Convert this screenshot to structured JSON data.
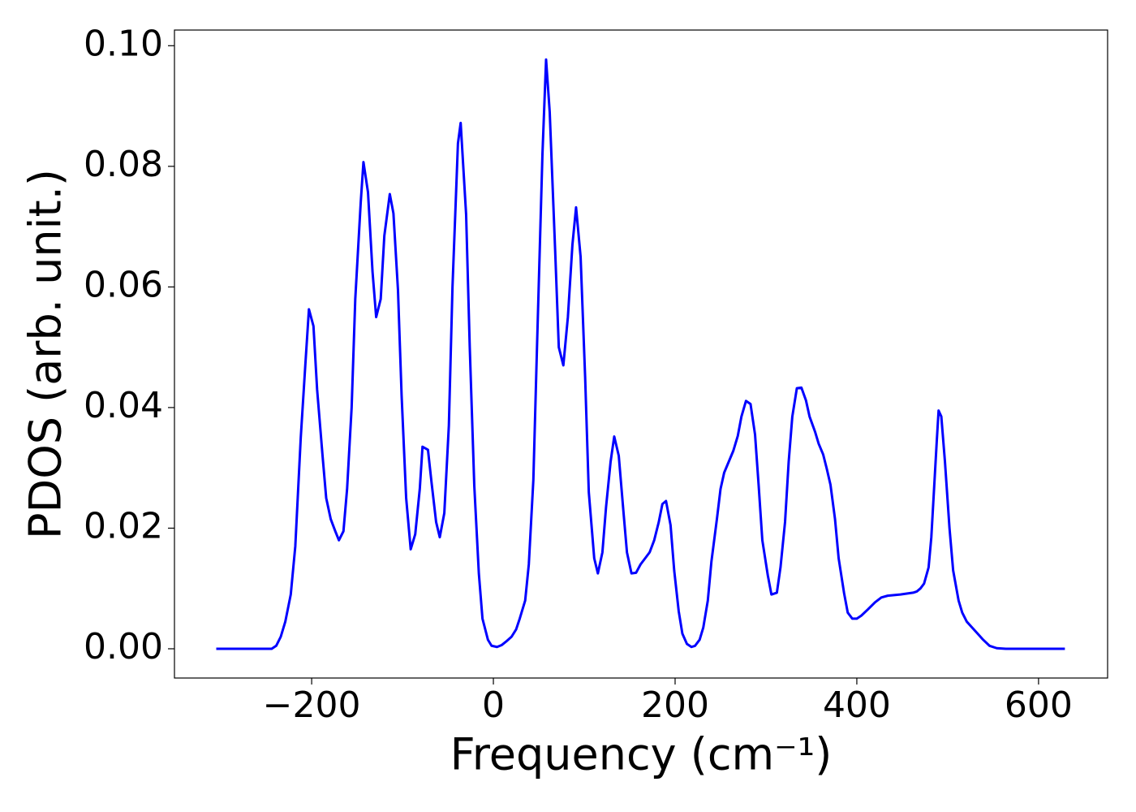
{
  "chart_data": {
    "type": "line",
    "xlabel": "Frequency (cm⁻¹)",
    "ylabel": "PDOS (arb. unit.)",
    "xlim": [
      -351,
      676
    ],
    "ylim": [
      -0.00485,
      0.1026
    ],
    "xticks": [
      {
        "value": -200,
        "label": "−200"
      },
      0,
      200,
      400,
      600
    ],
    "yticks": [
      {
        "value": 0,
        "label": "0.00"
      },
      {
        "value": 0.02,
        "label": "0.02"
      },
      {
        "value": 0.04,
        "label": "0.04"
      },
      {
        "value": 0.06,
        "label": "0.06"
      },
      {
        "value": 0.08,
        "label": "0.08"
      },
      {
        "value": 0.1,
        "label": "0.10"
      }
    ],
    "grid": false,
    "series": [
      {
        "color": "#0000ff",
        "x": [
          -305,
          -244,
          -239,
          -234,
          -229,
          -223,
          -218,
          -212,
          -207,
          -203,
          -198,
          -194,
          -188,
          -184,
          -179,
          -174,
          -170,
          -165,
          -161,
          -156,
          -152,
          -146,
          -143,
          -138,
          -133,
          -129,
          -124,
          -120,
          -114,
          -110,
          -105,
          -101,
          -96,
          -91,
          -86,
          -81,
          -78,
          -72,
          -68,
          -63,
          -59,
          -54,
          -49,
          -45,
          -39,
          -36,
          -30,
          -26,
          -21,
          -16,
          -12,
          -6,
          -2,
          4,
          9,
          14,
          20,
          25,
          29,
          35,
          39,
          44,
          48,
          54,
          58,
          62,
          68,
          72,
          77,
          82,
          87,
          91,
          96,
          101,
          105,
          111,
          115,
          120,
          124,
          129,
          133,
          138,
          143,
          147,
          152,
          157,
          162,
          168,
          172,
          177,
          182,
          186,
          190,
          195,
          199,
          204,
          208,
          213,
          218,
          222,
          227,
          231,
          236,
          240,
          246,
          250,
          254,
          259,
          264,
          269,
          273,
          278,
          283,
          288,
          292,
          296,
          302,
          306,
          312,
          316,
          321,
          325,
          329,
          334,
          339,
          344,
          348,
          354,
          358,
          363,
          367,
          371,
          376,
          380,
          386,
          390,
          395,
          400,
          405,
          412,
          420,
          427,
          434,
          448,
          462,
          466,
          470,
          474,
          479,
          482,
          485,
          488,
          490,
          493,
          497,
          502,
          506,
          512,
          516,
          521,
          527,
          533,
          539,
          546,
          554,
          564,
          629
        ],
        "values": [
          0,
          0,
          0.0005,
          0.002,
          0.0045,
          0.009,
          0.017,
          0.035,
          0.047,
          0.0563,
          0.0535,
          0.043,
          0.032,
          0.025,
          0.0215,
          0.0195,
          0.018,
          0.0195,
          0.0265,
          0.04,
          0.058,
          0.074,
          0.0807,
          0.0757,
          0.0625,
          0.055,
          0.058,
          0.0685,
          0.0754,
          0.0722,
          0.0595,
          0.042,
          0.025,
          0.0165,
          0.019,
          0.0265,
          0.0335,
          0.033,
          0.0275,
          0.021,
          0.0185,
          0.0225,
          0.037,
          0.06,
          0.0838,
          0.0872,
          0.072,
          0.05,
          0.027,
          0.0125,
          0.005,
          0.0015,
          0.0005,
          0.0003,
          0.0006,
          0.0012,
          0.002,
          0.0032,
          0.005,
          0.008,
          0.014,
          0.028,
          0.05,
          0.082,
          0.0977,
          0.089,
          0.066,
          0.05,
          0.047,
          0.055,
          0.067,
          0.0732,
          0.065,
          0.045,
          0.026,
          0.015,
          0.0125,
          0.016,
          0.0235,
          0.031,
          0.0352,
          0.032,
          0.023,
          0.016,
          0.0125,
          0.0126,
          0.014,
          0.0152,
          0.016,
          0.018,
          0.021,
          0.024,
          0.0245,
          0.0205,
          0.013,
          0.0062,
          0.0025,
          0.0008,
          0.0003,
          0.0005,
          0.0015,
          0.0035,
          0.008,
          0.0145,
          0.0215,
          0.0265,
          0.0292,
          0.031,
          0.0328,
          0.0353,
          0.0385,
          0.0411,
          0.0406,
          0.0355,
          0.027,
          0.018,
          0.0122,
          0.009,
          0.0093,
          0.0135,
          0.021,
          0.031,
          0.0385,
          0.0432,
          0.0433,
          0.0412,
          0.0385,
          0.036,
          0.034,
          0.0322,
          0.0298,
          0.0272,
          0.0215,
          0.015,
          0.0092,
          0.006,
          0.005,
          0.005,
          0.0055,
          0.0065,
          0.0077,
          0.0085,
          0.0088,
          0.009,
          0.0093,
          0.0095,
          0.01,
          0.0108,
          0.0135,
          0.0185,
          0.0265,
          0.0345,
          0.0395,
          0.0385,
          0.031,
          0.02,
          0.013,
          0.008,
          0.006,
          0.0045,
          0.0035,
          0.0025,
          0.0015,
          0.0005,
          0.0001,
          0,
          0
        ]
      }
    ]
  }
}
